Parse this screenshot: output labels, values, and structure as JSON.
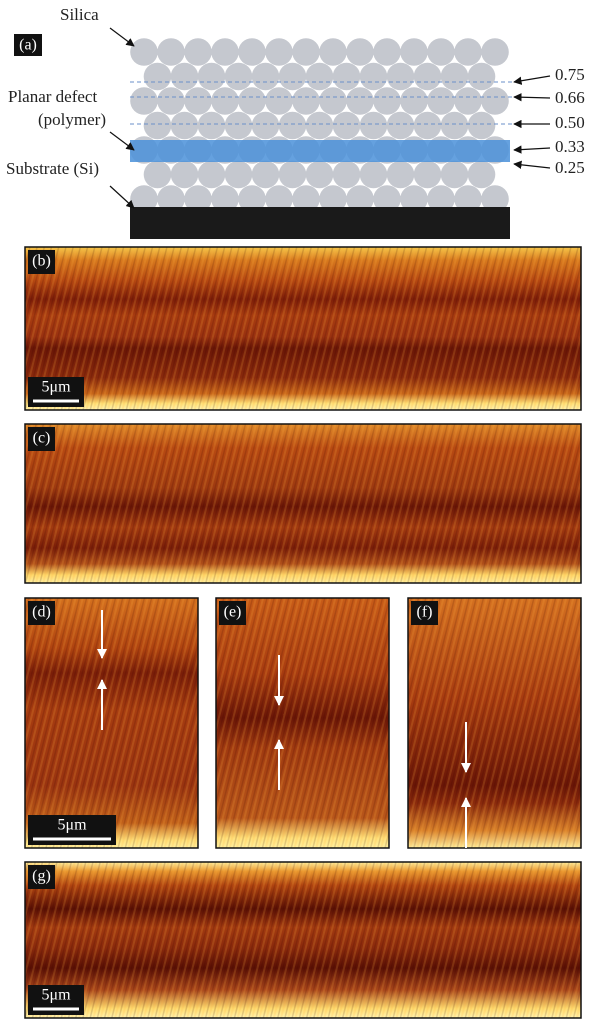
{
  "panel_a": {
    "label": "(a)",
    "silica": "Silica",
    "planar_defect": "Planar defect",
    "polymer": "(polymer)",
    "substrate": "Substrate (Si)",
    "fractions": [
      "0.75",
      "0.66",
      "0.50",
      "0.33",
      "0.25"
    ]
  },
  "panels": [
    {
      "label": "(b)",
      "scale_bar": "5μm"
    },
    {
      "label": "(c)"
    },
    {
      "label": "(d)",
      "scale_bar": "5μm"
    },
    {
      "label": "(e)"
    },
    {
      "label": "(f)"
    },
    {
      "label": "(g)",
      "scale_bar": "5μm"
    }
  ]
}
